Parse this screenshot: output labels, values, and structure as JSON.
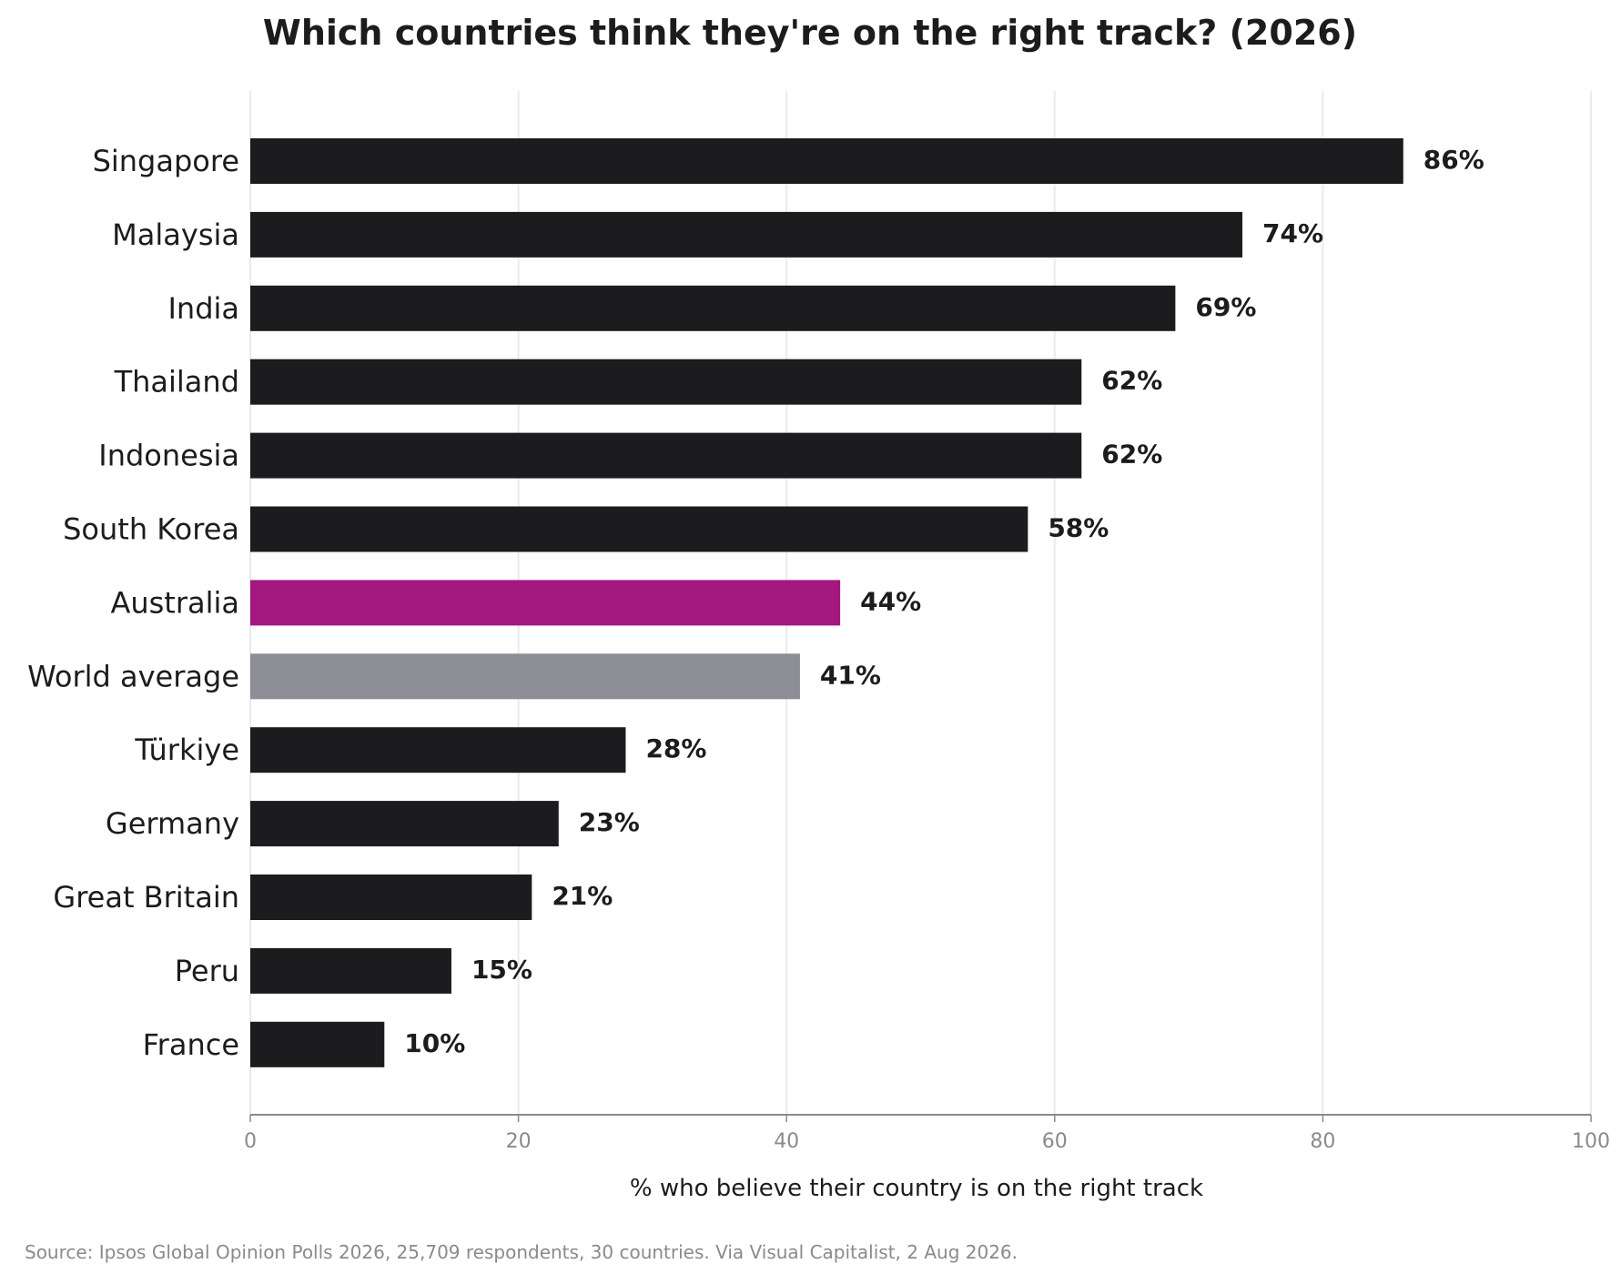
{
  "chart_data": {
    "type": "bar",
    "orientation": "horizontal",
    "title": "Which countries think they're on the right track? (2026)",
    "xlabel": "% who believe their country is on the right track",
    "ylabel": "",
    "xlim": [
      0,
      100
    ],
    "xticks": [
      "0",
      "20",
      "40",
      "60",
      "80",
      "100"
    ],
    "grid": "vertical",
    "categories": [
      "Singapore",
      "Malaysia",
      "India",
      "Thailand",
      "Indonesia",
      "South Korea",
      "Australia",
      "World average",
      "Türkiye",
      "Germany",
      "Great Britain",
      "Peru",
      "France"
    ],
    "values": [
      86,
      74,
      69,
      62,
      62,
      58,
      44,
      41,
      28,
      23,
      21,
      15,
      10
    ],
    "value_labels": [
      "86%",
      "74%",
      "69%",
      "62%",
      "62%",
      "58%",
      "44%",
      "41%",
      "28%",
      "23%",
      "21%",
      "15%",
      "10%"
    ],
    "colors": {
      "default": "#1c1c1e",
      "highlight": "#a3177f",
      "average": "#8d8d95",
      "grid": "#ebebeb",
      "axis": "#8a8a8e"
    },
    "highlight_category": "Australia",
    "average_category": "World average",
    "source": "Source: Ipsos Global Opinion Polls 2026, 25,709 respondents, 30 countries. Via Visual Capitalist, 2 Aug 2026."
  }
}
